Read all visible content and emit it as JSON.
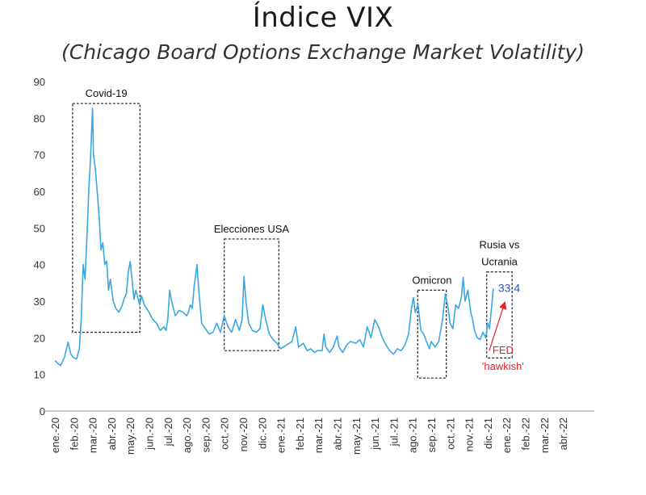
{
  "chart_data": {
    "type": "line",
    "title": "Índice VIX",
    "subtitle": "(Chicago Board Options Exchange Market Volatility)",
    "xlabel": "",
    "ylabel": "",
    "ylim": [
      0,
      90
    ],
    "yticks": [
      0,
      10,
      20,
      30,
      40,
      50,
      60,
      70,
      80,
      90
    ],
    "grid": false,
    "categories": [
      "ene.-20",
      "feb.-20",
      "mar.-20",
      "abr.-20",
      "may.-20",
      "jun.-20",
      "jul.-20",
      "ago.-20",
      "sep.-20",
      "oct.-20",
      "nov.-20",
      "dic.-20",
      "ene.-21",
      "feb.-21",
      "mar.-21",
      "abr.-21",
      "may.-21",
      "jun.-21",
      "jul.-21",
      "ago.-21",
      "sep.-21",
      "oct.-21",
      "nov.-21",
      "dic.-21",
      "ene.-22",
      "feb.-22",
      "mar.-22",
      "abr.-22"
    ],
    "series": [
      {
        "name": "VIX",
        "color": "#3aa8e0",
        "points": [
          [
            0.0,
            13.8
          ],
          [
            0.15,
            13.0
          ],
          [
            0.3,
            12.4
          ],
          [
            0.5,
            14.6
          ],
          [
            0.7,
            18.8
          ],
          [
            0.85,
            15.5
          ],
          [
            1.0,
            14.5
          ],
          [
            1.15,
            14.2
          ],
          [
            1.3,
            17.0
          ],
          [
            1.4,
            25.0
          ],
          [
            1.5,
            40.0
          ],
          [
            1.6,
            36.0
          ],
          [
            1.7,
            47.0
          ],
          [
            1.8,
            60.0
          ],
          [
            1.9,
            70.0
          ],
          [
            2.0,
            82.7
          ],
          [
            2.05,
            70.0
          ],
          [
            2.15,
            66.0
          ],
          [
            2.25,
            60.0
          ],
          [
            2.35,
            53.0
          ],
          [
            2.45,
            44.0
          ],
          [
            2.55,
            46.0
          ],
          [
            2.65,
            40.0
          ],
          [
            2.75,
            41.0
          ],
          [
            2.85,
            33.0
          ],
          [
            2.95,
            36.0
          ],
          [
            3.1,
            30.0
          ],
          [
            3.25,
            28.0
          ],
          [
            3.4,
            27.0
          ],
          [
            3.55,
            28.5
          ],
          [
            3.7,
            31.0
          ],
          [
            3.8,
            32.0
          ],
          [
            3.9,
            38.0
          ],
          [
            4.0,
            40.8
          ],
          [
            4.1,
            36.0
          ],
          [
            4.2,
            30.5
          ],
          [
            4.3,
            33.0
          ],
          [
            4.5,
            29.0
          ],
          [
            4.6,
            31.5
          ],
          [
            4.75,
            29.0
          ],
          [
            5.0,
            27.0
          ],
          [
            5.2,
            25.0
          ],
          [
            5.4,
            24.0
          ],
          [
            5.6,
            22.0
          ],
          [
            5.8,
            23.0
          ],
          [
            5.9,
            22.0
          ],
          [
            6.0,
            25.0
          ],
          [
            6.1,
            33.0
          ],
          [
            6.2,
            30.0
          ],
          [
            6.4,
            26.0
          ],
          [
            6.6,
            27.5
          ],
          [
            6.8,
            27.0
          ],
          [
            7.0,
            26.0
          ],
          [
            7.1,
            27.0
          ],
          [
            7.2,
            29.0
          ],
          [
            7.3,
            28.0
          ],
          [
            7.4,
            34.0
          ],
          [
            7.5,
            38.0
          ],
          [
            7.55,
            40.0
          ],
          [
            7.65,
            33.0
          ],
          [
            7.8,
            24.0
          ],
          [
            8.0,
            22.5
          ],
          [
            8.2,
            21.0
          ],
          [
            8.4,
            21.5
          ],
          [
            8.6,
            24.0
          ],
          [
            8.8,
            21.5
          ],
          [
            9.0,
            26.0
          ],
          [
            9.2,
            23.0
          ],
          [
            9.4,
            21.5
          ],
          [
            9.6,
            25.0
          ],
          [
            9.8,
            22.0
          ],
          [
            9.95,
            25.0
          ],
          [
            10.05,
            36.8
          ],
          [
            10.15,
            30.0
          ],
          [
            10.3,
            24.0
          ],
          [
            10.5,
            22.0
          ],
          [
            10.7,
            21.5
          ],
          [
            10.9,
            22.5
          ],
          [
            11.05,
            29.0
          ],
          [
            11.2,
            25.0
          ],
          [
            11.4,
            21.0
          ],
          [
            11.6,
            19.5
          ],
          [
            11.8,
            18.5
          ],
          [
            12.0,
            17.0
          ],
          [
            12.3,
            18.0
          ],
          [
            12.6,
            19.0
          ],
          [
            12.8,
            23.0
          ],
          [
            12.95,
            17.5
          ],
          [
            13.2,
            18.5
          ],
          [
            13.4,
            16.5
          ],
          [
            13.6,
            17.0
          ],
          [
            13.8,
            16.0
          ],
          [
            13.95,
            16.5
          ],
          [
            14.2,
            16.5
          ],
          [
            14.3,
            21.0
          ],
          [
            14.4,
            17.5
          ],
          [
            14.6,
            16.0
          ],
          [
            14.8,
            17.5
          ],
          [
            15.0,
            20.5
          ],
          [
            15.1,
            17.5
          ],
          [
            15.3,
            16.0
          ],
          [
            15.5,
            18.0
          ],
          [
            15.7,
            19.0
          ],
          [
            16.0,
            18.5
          ],
          [
            16.2,
            19.5
          ],
          [
            16.4,
            17.5
          ],
          [
            16.6,
            23.0
          ],
          [
            16.8,
            20.0
          ],
          [
            17.0,
            25.0
          ],
          [
            17.2,
            23.0
          ],
          [
            17.4,
            20.0
          ],
          [
            17.6,
            18.0
          ],
          [
            17.8,
            16.5
          ],
          [
            18.0,
            15.5
          ],
          [
            18.2,
            17.0
          ],
          [
            18.4,
            16.5
          ],
          [
            18.6,
            18.0
          ],
          [
            18.8,
            21.0
          ],
          [
            18.95,
            28.0
          ],
          [
            19.05,
            31.0
          ],
          [
            19.15,
            27.0
          ],
          [
            19.3,
            29.0
          ],
          [
            19.45,
            22.0
          ],
          [
            19.6,
            21.0
          ],
          [
            19.75,
            19.0
          ],
          [
            19.9,
            17.0
          ],
          [
            20.0,
            19.0
          ],
          [
            20.2,
            17.5
          ],
          [
            20.4,
            19.0
          ],
          [
            20.6,
            25.0
          ],
          [
            20.75,
            32.0
          ],
          [
            20.9,
            28.0
          ],
          [
            21.0,
            24.0
          ],
          [
            21.15,
            22.5
          ],
          [
            21.3,
            29.0
          ],
          [
            21.45,
            28.0
          ],
          [
            21.6,
            31.0
          ],
          [
            21.7,
            36.5
          ],
          [
            21.8,
            30.0
          ],
          [
            21.95,
            33.0
          ],
          [
            22.1,
            27.0
          ],
          [
            22.2,
            25.0
          ],
          [
            22.3,
            22.0
          ],
          [
            22.45,
            20.0
          ],
          [
            22.6,
            19.5
          ],
          [
            22.75,
            21.5
          ],
          [
            22.9,
            20.0
          ],
          [
            23.0,
            24.0
          ],
          [
            23.1,
            22.5
          ],
          [
            23.2,
            28.0
          ],
          [
            23.3,
            33.4
          ]
        ]
      }
    ],
    "annotations": [
      {
        "label": "Covid-19",
        "x_range": [
          0.94,
          4.52
        ],
        "y_range": [
          21.5,
          84.0
        ]
      },
      {
        "label": "Elecciones USA",
        "x_range": [
          9.0,
          11.9
        ],
        "y_range": [
          16.5,
          47.0
        ]
      },
      {
        "label": "Omicron",
        "x_range": [
          19.28,
          20.8
        ],
        "y_range": [
          9.0,
          33.0
        ]
      },
      {
        "label_lines": [
          "Rusia vs",
          "Ucrania"
        ],
        "x_range": [
          22.95,
          24.3
        ],
        "y_range": [
          14.5,
          38.0
        ]
      }
    ],
    "end_value_label": "33,4",
    "callout": {
      "lines": [
        "FED",
        "'hawkish'"
      ],
      "color": "#e8202a"
    },
    "colors": {
      "line": "#3aa8e0",
      "end_label": "#2a57b8",
      "callout": "#e8202a",
      "box": "#222222"
    }
  }
}
